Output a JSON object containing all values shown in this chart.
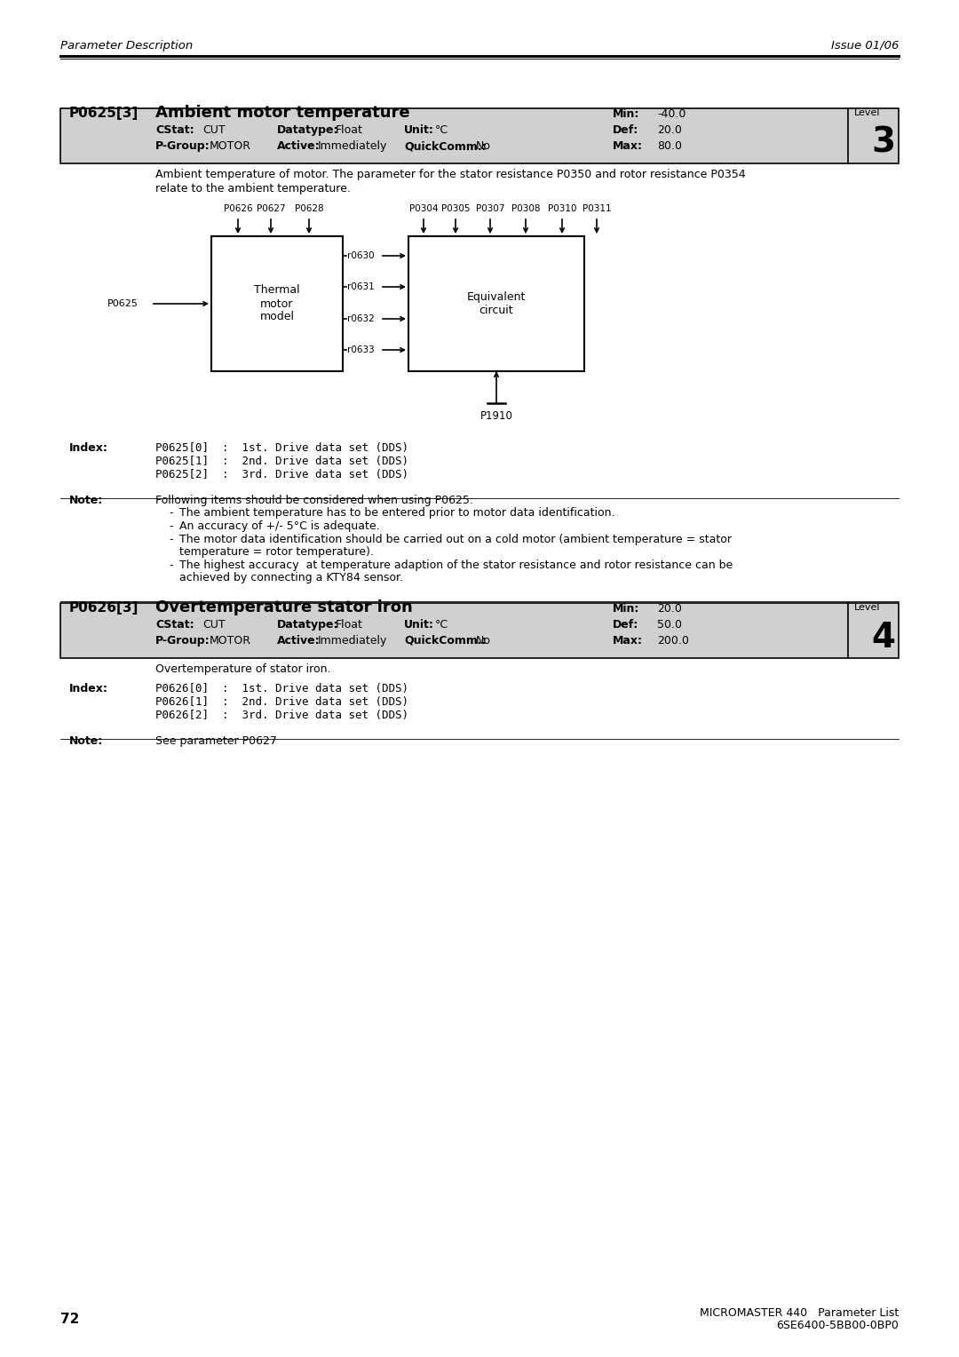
{
  "page_header_left": "Parameter Description",
  "page_header_right": "Issue 01/06",
  "page_number": "72",
  "footer_right_line1": "MICROMASTER 440   Parameter List",
  "footer_right_line2": "6SE6400-5BB00-0BP0",
  "param1": {
    "id": "P0625[3]",
    "title": "Ambient motor temperature",
    "cstat_label": "CStat:",
    "cstat_val": "CUT",
    "datatype_label": "Datatype:",
    "datatype_val": "Float",
    "unit_label": "Unit:",
    "unit_val": "°C",
    "min_label": "Min:",
    "min_val": "-40.0",
    "def_label": "Def:",
    "def_val": "20.0",
    "max_label": "Max:",
    "max_val": "80.0",
    "level_label": "Level",
    "level_val": "3",
    "pgroup_label": "P-Group:",
    "pgroup_val": "MOTOR",
    "active_label": "Active:",
    "active_val": "Immediately",
    "qc_label": "QuickComm.:",
    "qc_val": "No",
    "desc_line1": "Ambient temperature of motor. The parameter for the stator resistance P0350 and rotor resistance P0354",
    "desc_line2": "relate to the ambient temperature.",
    "index_label": "Index:",
    "index_lines": [
      "P0625[0]  :  1st. Drive data set (DDS)",
      "P0625[1]  :  2nd. Drive data set (DDS)",
      "P0625[2]  :  3rd. Drive data set (DDS)"
    ],
    "note_label": "Note:",
    "note_intro": "Following items should be considered when using P0625:",
    "note_bullets": [
      "The ambient temperature has to be entered prior to motor data identification.",
      "An accuracy of +/- 5°C is adequate.",
      "The motor data identification should be carried out on a cold motor (ambient temperature = stator",
      "temperature = rotor temperature).",
      "The highest accuracy  at temperature adaption of the stator resistance and rotor resistance can be",
      "achieved by connecting a KTY84 sensor."
    ],
    "note_bullet_groups": [
      1,
      1,
      2,
      2
    ]
  },
  "param2": {
    "id": "P0626[3]",
    "title": "Overtemperature stator iron",
    "cstat_label": "CStat:",
    "cstat_val": "CUT",
    "datatype_label": "Datatype:",
    "datatype_val": "Float",
    "unit_label": "Unit:",
    "unit_val": "°C",
    "min_label": "Min:",
    "min_val": "20.0",
    "def_label": "Def:",
    "def_val": "50.0",
    "max_label": "Max:",
    "max_val": "200.0",
    "level_label": "Level",
    "level_val": "4",
    "pgroup_label": "P-Group:",
    "pgroup_val": "MOTOR",
    "active_label": "Active:",
    "active_val": "Immediately",
    "qc_label": "QuickComm.:",
    "qc_val": "No",
    "description": "Overtemperature of stator iron.",
    "index_label": "Index:",
    "index_lines": [
      "P0626[0]  :  1st. Drive data set (DDS)",
      "P0626[1]  :  2nd. Drive data set (DDS)",
      "P0626[2]  :  3rd. Drive data set (DDS)"
    ],
    "note_label": "Note:",
    "note_text": "See parameter P0627"
  },
  "diagram": {
    "top_inputs_left": [
      "P0626",
      "P0627",
      "P0628"
    ],
    "top_inputs_right": [
      "P0304",
      "P0305",
      "P0307",
      "P0308",
      "P0310",
      "P0311"
    ],
    "left_input": "P0625",
    "box1_label": "Thermal\nmotor\nmodel",
    "box2_label": "Equivalent\ncircuit",
    "outputs": [
      "r0630",
      "r0631",
      "r0632",
      "r0633"
    ],
    "bottom_input": "P1910"
  },
  "bg_color": "#ffffff",
  "text_color": "#000000",
  "param_header_bg": "#d0d0d0"
}
